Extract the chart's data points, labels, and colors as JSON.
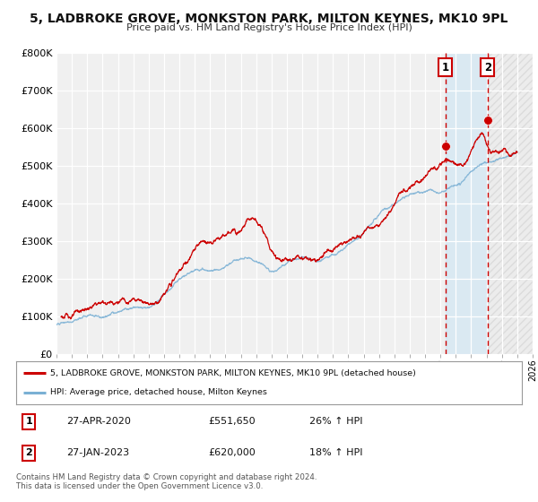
{
  "title": "5, LADBROKE GROVE, MONKSTON PARK, MILTON KEYNES, MK10 9PL",
  "subtitle": "Price paid vs. HM Land Registry's House Price Index (HPI)",
  "xlim": [
    1995,
    2026
  ],
  "ylim": [
    0,
    800000
  ],
  "yticks": [
    0,
    100000,
    200000,
    300000,
    400000,
    500000,
    600000,
    700000,
    800000
  ],
  "ytick_labels": [
    "£0",
    "£100K",
    "£200K",
    "£300K",
    "£400K",
    "£500K",
    "£600K",
    "£700K",
    "£800K"
  ],
  "red_line_color": "#cc0000",
  "blue_line_color": "#7ab0d4",
  "marker1_x": 2020.32,
  "marker1_y": 551650,
  "marker2_x": 2023.07,
  "marker2_y": 620000,
  "vline1_x": 2020.32,
  "vline2_x": 2023.07,
  "shade_start": 2020.32,
  "shade_end": 2023.07,
  "hatch_start": 2023.07,
  "hatch_end": 2026,
  "legend_line1": "5, LADBROKE GROVE, MONKSTON PARK, MILTON KEYNES, MK10 9PL (detached house)",
  "legend_line2": "HPI: Average price, detached house, Milton Keynes",
  "ann1_label": "1",
  "ann1_date": "27-APR-2020",
  "ann1_price": "£551,650",
  "ann1_hpi": "26% ↑ HPI",
  "ann2_label": "2",
  "ann2_date": "27-JAN-2023",
  "ann2_price": "£620,000",
  "ann2_hpi": "18% ↑ HPI",
  "footer": "Contains HM Land Registry data © Crown copyright and database right 2024.\nThis data is licensed under the Open Government Licence v3.0.",
  "background_color": "#ffffff",
  "plot_bg_color": "#f0f0f0"
}
